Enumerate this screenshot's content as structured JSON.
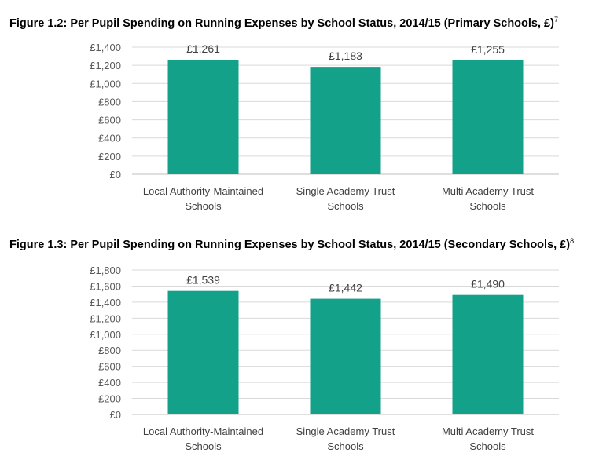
{
  "figures": [
    {
      "title": "Figure 1.2: Per Pupil Spending on Running Expenses by School Status, 2014/15 (Primary Schools, £)",
      "footnote": "7"
    },
    {
      "title": "Figure 1.3: Per Pupil Spending on Running Expenses by School Status, 2014/15 (Secondary Schools, £)",
      "footnote": "8"
    }
  ],
  "colors": {
    "bar": "#13A189",
    "grid": "#D9D9D9",
    "axis": "#BFBFBF"
  },
  "chart_data": [
    {
      "type": "bar",
      "title": "Figure 1.2: Per Pupil Spending on Running Expenses by School Status, 2014/15 (Primary Schools, £)",
      "categories": [
        [
          "Local Authority-Maintained",
          "Schools"
        ],
        [
          "Single Academy Trust",
          "Schools"
        ],
        [
          "Multi Academy Trust",
          "Schools"
        ]
      ],
      "values": [
        1261,
        1183,
        1255
      ],
      "data_labels": [
        "£1,261",
        "£1,183",
        "£1,255"
      ],
      "yticks": [
        "£0",
        "£200",
        "£400",
        "£600",
        "£800",
        "£1,000",
        "£1,200",
        "£1,400"
      ],
      "ylim": [
        0,
        1400
      ],
      "ystep": 200,
      "grid": true
    },
    {
      "type": "bar",
      "title": "Figure 1.3: Per Pupil Spending on Running Expenses by School Status, 2014/15 (Secondary Schools, £)",
      "categories": [
        [
          "Local Authority-Maintained",
          "Schools"
        ],
        [
          "Single Academy Trust",
          "Schools"
        ],
        [
          "Multi Academy Trust",
          "Schools"
        ]
      ],
      "values": [
        1539,
        1442,
        1490
      ],
      "data_labels": [
        "£1,539",
        "£1,442",
        "£1,490"
      ],
      "yticks": [
        "£0",
        "£200",
        "£400",
        "£600",
        "£800",
        "£1,000",
        "£1,200",
        "£1,400",
        "£1,600",
        "£1,800"
      ],
      "ylim": [
        0,
        1800
      ],
      "ystep": 200,
      "grid": true
    }
  ]
}
